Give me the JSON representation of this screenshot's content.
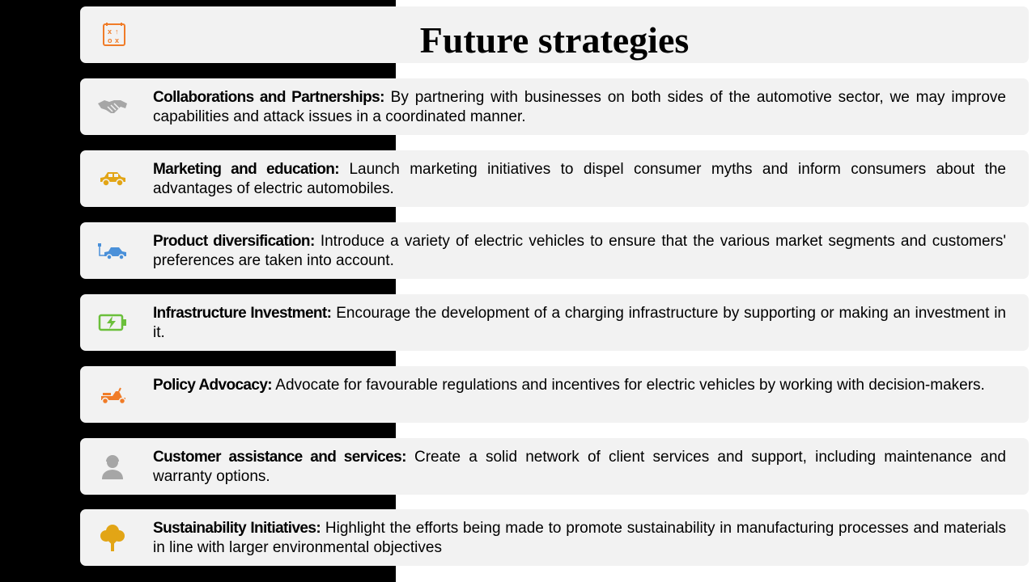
{
  "title": "Future strategies",
  "items": [
    {
      "heading": "Collaborations and Partnerships:",
      "text": " By partnering with businesses on both sides of the automotive sector, we may improve capabilities and attack issues in a coordinated manner.",
      "icon": "handshake-icon",
      "color": "#a6a6a6"
    },
    {
      "heading": "Marketing and education:",
      "text": " Launch marketing initiatives to dispel consumer myths and inform consumers about the advantages of electric automobiles.",
      "icon": "car-icon",
      "color": "#e2a516"
    },
    {
      "heading": "Product diversification:",
      "text": " Introduce a variety of electric vehicles to ensure that the various market segments and customers' preferences are taken into account.",
      "icon": "electric-car-icon",
      "color": "#4a90d9"
    },
    {
      "heading": "Infrastructure Investment:",
      "text": " Encourage the development of a charging infrastructure by supporting or making an investment in it.",
      "icon": "battery-charging-icon",
      "color": "#6bbf3b"
    },
    {
      "heading": "Policy Advocacy:",
      "text": " Advocate for favourable regulations and incentives for electric vehicles by working with decision-makers.",
      "icon": "scooter-icon",
      "color": "#f07c28"
    },
    {
      "heading": "Customer assistance and services:",
      "text": " Create a solid network of client services and support, including maintenance and warranty options.",
      "icon": "support-agent-icon",
      "color": "#a6a6a6"
    },
    {
      "heading": "Sustainability Initiatives:",
      "text": " Highlight the efforts being made to promote sustainability in manufacturing processes and materials in line with larger environmental objectives",
      "icon": "tree-icon",
      "color": "#e2a516"
    }
  ],
  "title_icon": {
    "name": "strategy-board-icon",
    "color": "#f07c28"
  }
}
